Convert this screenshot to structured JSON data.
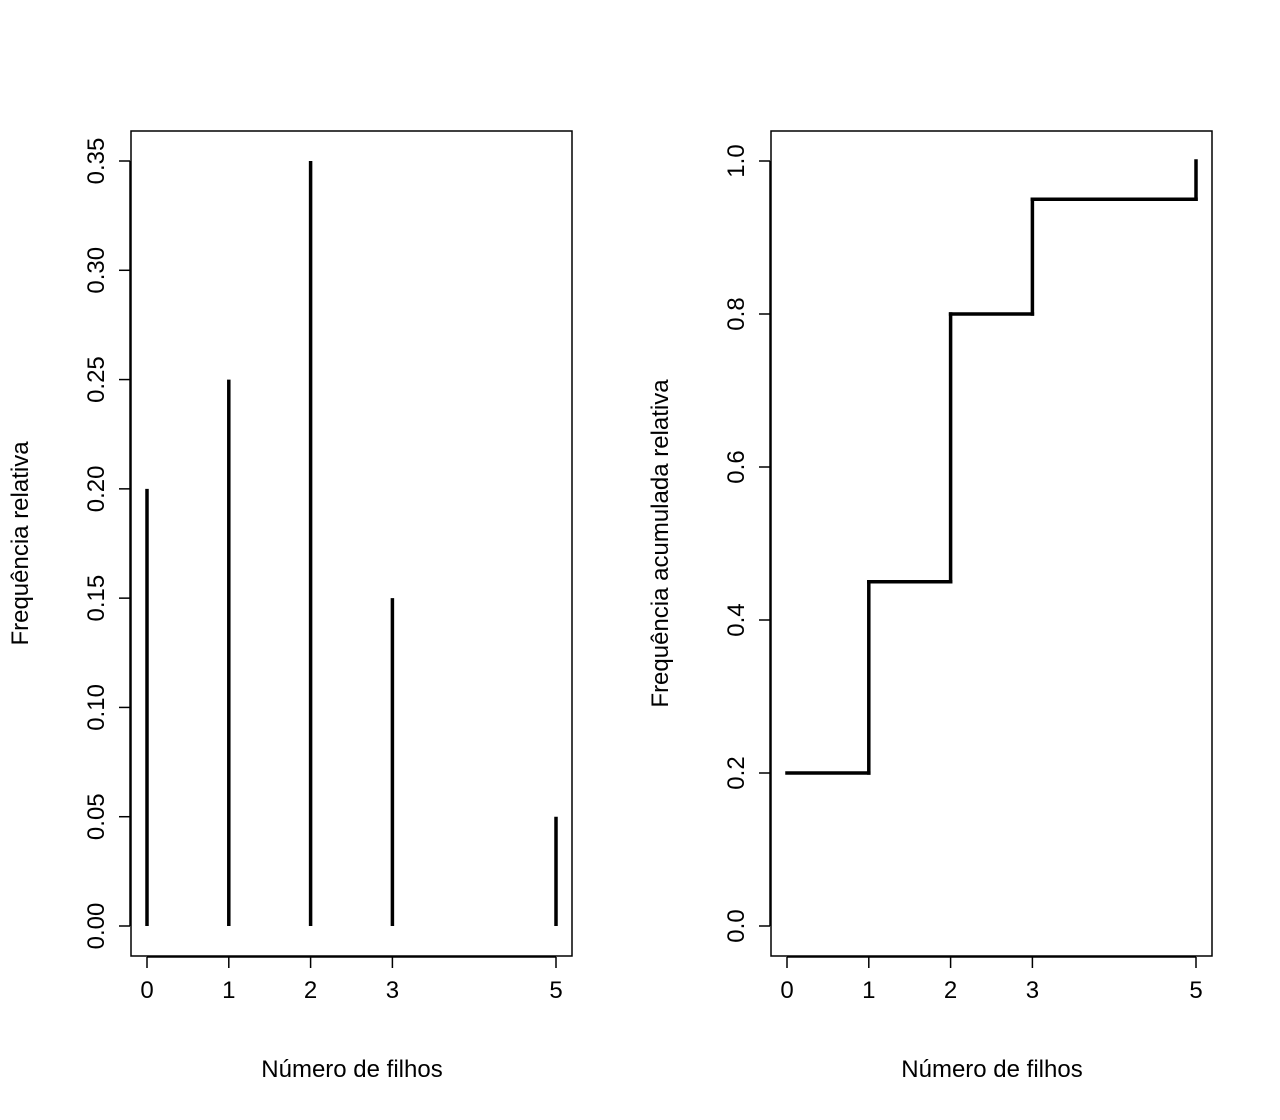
{
  "chart_data": [
    {
      "type": "bar",
      "style": "vertical-lines",
      "title": "",
      "xlabel": "Número de filhos",
      "ylabel": "Frequência relativa",
      "x": [
        0,
        1,
        2,
        3,
        5
      ],
      "values": [
        0.2,
        0.25,
        0.35,
        0.15,
        0.05
      ],
      "xticks": [
        "0",
        "1",
        "2",
        "3",
        "5"
      ],
      "yticks": [
        "0.00",
        "0.05",
        "0.10",
        "0.15",
        "0.20",
        "0.25",
        "0.30",
        "0.35"
      ],
      "xlim": [
        0,
        5
      ],
      "ylim": [
        0,
        0.35
      ],
      "grid": false,
      "color": "#000000"
    },
    {
      "type": "line",
      "style": "step",
      "title": "",
      "xlabel": "Número de filhos",
      "ylabel": "Frequência acumulada relativa",
      "x": [
        0,
        1,
        2,
        3,
        5
      ],
      "values": [
        0.2,
        0.45,
        0.8,
        0.95,
        1.0
      ],
      "xticks": [
        "0",
        "1",
        "2",
        "3",
        "5"
      ],
      "yticks": [
        "0.0",
        "0.2",
        "0.4",
        "0.6",
        "0.8",
        "1.0"
      ],
      "xlim": [
        0,
        5
      ],
      "ylim": [
        0,
        1.0
      ],
      "grid": false,
      "color": "#000000"
    }
  ]
}
